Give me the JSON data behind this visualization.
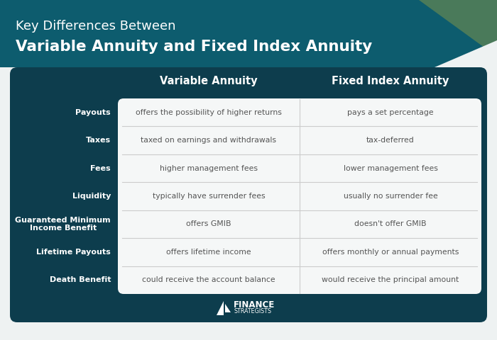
{
  "title_line1": "Key Differences Between",
  "title_line2": "Variable Annuity and Fixed Index Annuity",
  "header_col1": "Variable Annuity",
  "header_col2": "Fixed Index Annuity",
  "rows": [
    {
      "label": "Payouts",
      "col1": "offers the possibility of higher returns",
      "col2": "pays a set percentage"
    },
    {
      "label": "Taxes",
      "col1": "taxed on earnings and withdrawals",
      "col2": "tax-deferred"
    },
    {
      "label": "Fees",
      "col1": "higher management fees",
      "col2": "lower management fees"
    },
    {
      "label": "Liquidity",
      "col1": "typically have surrender fees",
      "col2": "usually no surrender fee"
    },
    {
      "label": "Guaranteed Minimum\nIncome Benefit",
      "col1": "offers GMIB",
      "col2": "doesn't offer GMIB"
    },
    {
      "label": "Lifetime Payouts",
      "col1": "offers lifetime income",
      "col2": "offers monthly or annual payments"
    },
    {
      "label": "Death Benefit",
      "col1": "could receive the account balance",
      "col2": "would receive the principal amount"
    }
  ],
  "bg_color": "#eef2f2",
  "table_bg": "#0d3d4d",
  "table_inner_bg": "#f5f7f7",
  "label_color": "#ffffff",
  "header_text_color": "#ffffff",
  "cell_text_color": "#555555",
  "divider_color": "#cccccc",
  "title_bg": "#0d5c6e",
  "title_color1": "#ffffff",
  "title_color2": "#ffffff",
  "accent_color": "#4a7a5a"
}
